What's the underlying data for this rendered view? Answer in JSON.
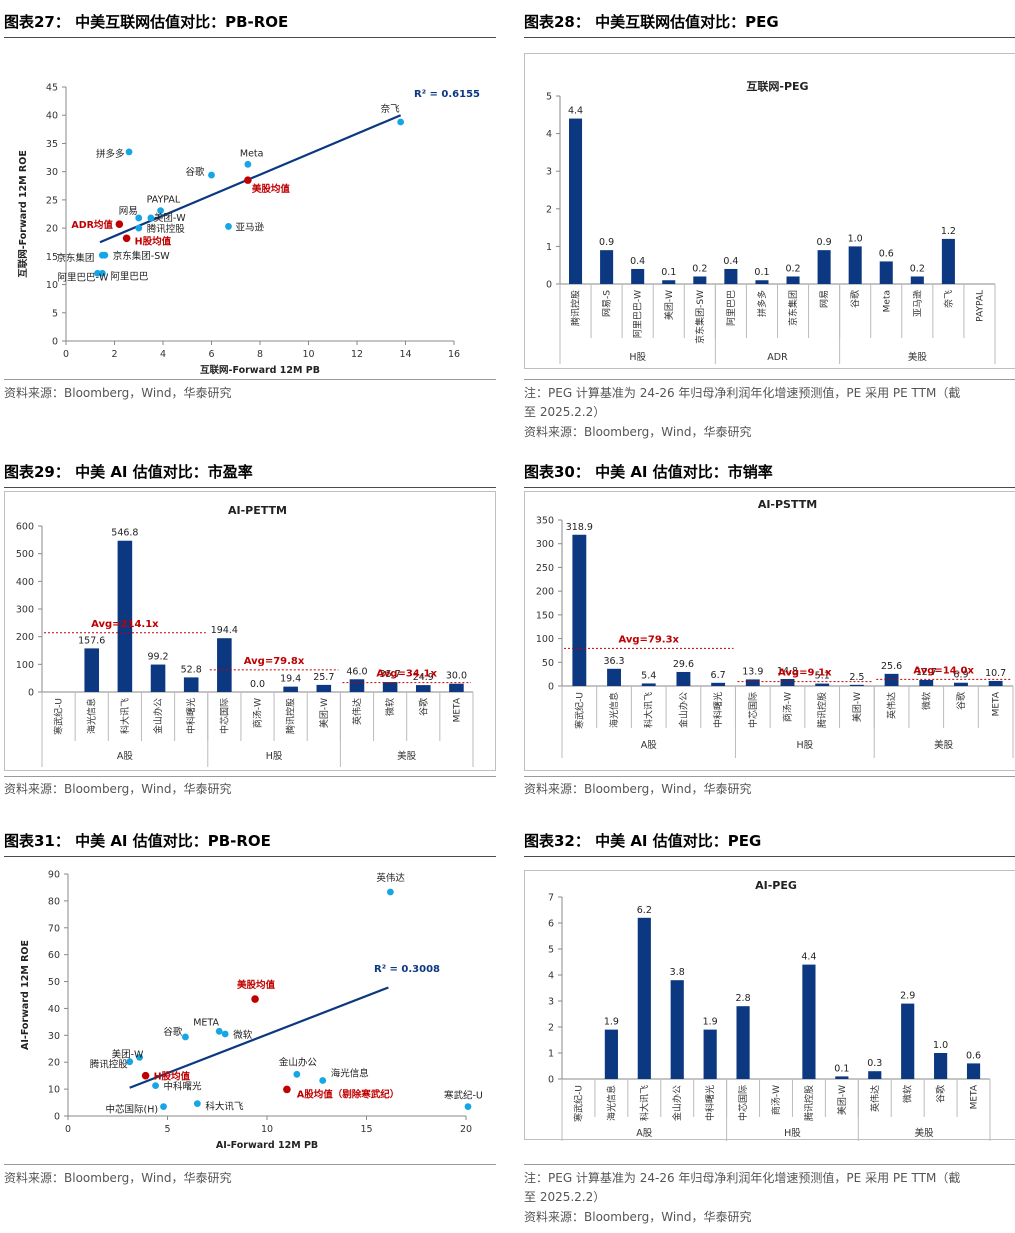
{
  "colors": {
    "bar": "#0b3880",
    "point": "#16a6e6",
    "highlight": "#c00000",
    "line": "#0b3880",
    "axis": "#888888"
  },
  "panels": [
    {
      "title": "图表27： 中美互联网估值对比：PB-ROE",
      "notes": [
        "资料来源：Bloomberg，Wind，华泰研究"
      ],
      "chart_data": {
        "type": "scatter",
        "xlabel": "互联网-Forward 12M PB",
        "ylabel": "互联网-Forward 12M ROE",
        "xlim": [
          0,
          16
        ],
        "ylim": [
          0,
          45
        ],
        "xstep": 2,
        "ystep": 5,
        "r2": "R² = 0.6155",
        "trend": [
          [
            1.4,
            17.5
          ],
          [
            13.8,
            40.0
          ]
        ],
        "points": [
          {
            "name": "奈飞",
            "x": 13.8,
            "y": 38.8,
            "group": "us"
          },
          {
            "name": "Meta",
            "x": 7.5,
            "y": 31.3,
            "group": "us"
          },
          {
            "name": "美股均值",
            "x": 7.5,
            "y": 28.5,
            "group": "avg"
          },
          {
            "name": "拼多多",
            "x": 2.6,
            "y": 33.5,
            "group": "cn"
          },
          {
            "name": "谷歌",
            "x": 6.0,
            "y": 29.4,
            "group": "us"
          },
          {
            "name": "PAYPAL",
            "x": 3.9,
            "y": 23.1,
            "group": "us"
          },
          {
            "name": "网易",
            "x": 3.0,
            "y": 21.8,
            "group": "cn"
          },
          {
            "name": "美团-W",
            "x": 3.5,
            "y": 21.8,
            "group": "cn"
          },
          {
            "name": "ADR均值",
            "x": 2.2,
            "y": 20.7,
            "group": "avg"
          },
          {
            "name": "腾讯控股",
            "x": 3.0,
            "y": 20.0,
            "group": "cn"
          },
          {
            "name": "亚马逊",
            "x": 6.7,
            "y": 20.3,
            "group": "us"
          },
          {
            "name": "H股均值",
            "x": 2.5,
            "y": 18.2,
            "group": "avg"
          },
          {
            "name": "京东集团",
            "x": 1.5,
            "y": 15.2,
            "group": "cn"
          },
          {
            "name": "京东集团-SW",
            "x": 1.6,
            "y": 15.2,
            "group": "cn"
          },
          {
            "name": "阿里巴巴",
            "x": 1.5,
            "y": 12.0,
            "group": "cn"
          },
          {
            "name": "阿里巴巴-W",
            "x": 1.3,
            "y": 12.0,
            "group": "cn"
          }
        ]
      }
    },
    {
      "title": "图表28： 中美互联网估值对比：PEG",
      "notes": [
        "注：PEG 计算基准为 24-26 年归母净利润年化增速预测值，PE 采用 PE TTM（截",
        "至 2025.2.2）",
        "资料来源：Bloomberg，Wind，华泰研究"
      ],
      "chart_data": {
        "type": "bar",
        "title": "互联网-PEG",
        "ylim": [
          0,
          5
        ],
        "ystep": 1,
        "categories": [
          "腾讯控股",
          "网易-S",
          "阿里巴巴-W",
          "美团-W",
          "京东集团-SW",
          "阿里巴巴",
          "拼多多",
          "京东集团",
          "网易",
          "谷歌",
          "Meta",
          "亚马逊",
          "奈飞",
          "PAYPAL"
        ],
        "values": [
          4.4,
          0.9,
          0.4,
          0.1,
          0.2,
          0.4,
          0.1,
          0.2,
          0.9,
          1.0,
          0.6,
          0.2,
          1.2,
          null
        ],
        "labels": [
          "4.4",
          "0.9",
          "0.4",
          "0.1",
          "0.2",
          "0.4",
          "0.1",
          "0.2",
          "0.9",
          "1.0",
          "0.6",
          "0.2",
          "1.2",
          ""
        ],
        "groups": [
          {
            "name": "H股",
            "count": 5
          },
          {
            "name": "ADR",
            "count": 4
          },
          {
            "name": "美股",
            "count": 5
          }
        ]
      }
    },
    {
      "title": "图表29： 中美 AI 估值对比：市盈率",
      "notes": [
        "资料来源：Bloomberg，Wind，华泰研究"
      ],
      "chart_data": {
        "type": "bar",
        "title": "AI-PETTM",
        "ylim": [
          0,
          600
        ],
        "ystep": 100,
        "categories": [
          "寒武纪-U",
          "海光信息",
          "科大讯飞",
          "金山办公",
          "中科曙光",
          "中芯国际",
          "商汤-W",
          "腾讯控股",
          "美团-W",
          "英伟达",
          "微软",
          "谷歌",
          "META"
        ],
        "values": [
          null,
          157.6,
          546.8,
          99.2,
          52.8,
          194.4,
          0.0,
          19.4,
          25.7,
          46.0,
          35.7,
          24.9,
          30.0
        ],
        "labels": [
          "",
          "157.6",
          "546.8",
          "99.2",
          "52.8",
          "194.4",
          "0.0",
          "19.4",
          "25.7",
          "46.0",
          "35.7",
          "24.9",
          "30.0"
        ],
        "groups": [
          {
            "name": "A股",
            "count": 5
          },
          {
            "name": "H股",
            "count": 4
          },
          {
            "name": "美股",
            "count": 4
          }
        ],
        "averages": [
          {
            "label": "Avg=214.1x",
            "value": 214.1,
            "from": 0,
            "to": 4
          },
          {
            "label": "Avg=79.8x",
            "value": 79.8,
            "from": 5,
            "to": 8
          },
          {
            "label": "Avg=34.1x",
            "value": 34.1,
            "from": 9,
            "to": 12
          }
        ]
      }
    },
    {
      "title": "图表30： 中美 AI 估值对比：市销率",
      "notes": [
        "资料来源：Bloomberg，Wind，华泰研究"
      ],
      "chart_data": {
        "type": "bar",
        "title": "AI-PSTTM",
        "ylim": [
          0,
          350
        ],
        "ystep": 50,
        "categories": [
          "寒武纪-U",
          "海光信息",
          "科大讯飞",
          "金山办公",
          "中科曙光",
          "中芯国际",
          "商汤-W",
          "腾讯控股",
          "美团-W",
          "英伟达",
          "微软",
          "谷歌",
          "META"
        ],
        "values": [
          318.9,
          36.3,
          5.4,
          29.6,
          6.7,
          13.9,
          14.8,
          5.1,
          2.5,
          25.6,
          12.7,
          6.9,
          10.7
        ],
        "labels": [
          "318.9",
          "36.3",
          "5.4",
          "29.6",
          "6.7",
          "13.9",
          "14.8",
          "5.1",
          "2.5",
          "25.6",
          "12.7",
          "6.9",
          "10.7"
        ],
        "groups": [
          {
            "name": "A股",
            "count": 5
          },
          {
            "name": "H股",
            "count": 4
          },
          {
            "name": "美股",
            "count": 4
          }
        ],
        "averages": [
          {
            "label": "Avg=79.3x",
            "value": 79.3,
            "from": 0,
            "to": 4
          },
          {
            "label": "Avg=9.1x",
            "value": 9.1,
            "from": 5,
            "to": 8
          },
          {
            "label": "Avg=14.0x",
            "value": 14.0,
            "from": 9,
            "to": 12
          }
        ]
      }
    },
    {
      "title": "图表31： 中美 AI 估值对比：PB-ROE",
      "notes": [
        "资料来源：Bloomberg，Wind，华泰研究"
      ],
      "chart_data": {
        "type": "scatter",
        "xlabel": "AI-Forward 12M PB",
        "ylabel": "AI-Forward 12M ROE",
        "xlim": [
          0,
          20
        ],
        "ylim": [
          0,
          90
        ],
        "xstep": 5,
        "ystep": 10,
        "r2": "R² = 0.3008",
        "trend": [
          [
            3.1,
            10.5
          ],
          [
            16.1,
            47.8
          ]
        ],
        "points": [
          {
            "name": "英伟达",
            "x": 16.2,
            "y": 83.3,
            "group": "us"
          },
          {
            "name": "美股均值",
            "x": 9.4,
            "y": 43.5,
            "group": "avg"
          },
          {
            "name": "META",
            "x": 7.6,
            "y": 31.5,
            "group": "us"
          },
          {
            "name": "谷歌",
            "x": 5.9,
            "y": 29.4,
            "group": "us"
          },
          {
            "name": "微软",
            "x": 7.9,
            "y": 30.5,
            "group": "us"
          },
          {
            "name": "美团-W",
            "x": 3.6,
            "y": 21.8,
            "group": "cn"
          },
          {
            "name": "腾讯控股",
            "x": 3.1,
            "y": 20.2,
            "group": "cn"
          },
          {
            "name": "H股均值",
            "x": 3.9,
            "y": 15.0,
            "group": "avg"
          },
          {
            "name": "中科曙光",
            "x": 4.4,
            "y": 11.3,
            "group": "cn"
          },
          {
            "name": "金山办公",
            "x": 11.5,
            "y": 15.5,
            "group": "cn"
          },
          {
            "name": "海光信息",
            "x": 12.8,
            "y": 13.2,
            "group": "cn"
          },
          {
            "name": "A股均值（剔除寒武纪）",
            "x": 11.0,
            "y": 9.9,
            "group": "avg"
          },
          {
            "name": "科大讯飞",
            "x": 6.5,
            "y": 4.6,
            "group": "cn"
          },
          {
            "name": "中芯国际(H)",
            "x": 4.8,
            "y": 3.5,
            "group": "cn"
          },
          {
            "name": "寒武纪-U",
            "x": 20.1,
            "y": 3.5,
            "group": "cn"
          }
        ]
      }
    },
    {
      "title": "图表32： 中美 AI 估值对比：PEG",
      "notes": [
        "注：PEG 计算基准为 24-26 年归母净利润年化增速预测值，PE 采用 PE TTM（截",
        "至 2025.2.2）",
        "资料来源：Bloomberg，Wind，华泰研究"
      ],
      "chart_data": {
        "type": "bar",
        "title": "AI-PEG",
        "ylim": [
          0,
          7
        ],
        "ystep": 1,
        "categories": [
          "寒武纪-U",
          "海光信息",
          "科大讯飞",
          "金山办公",
          "中科曙光",
          "中芯国际",
          "商汤-W",
          "腾讯控股",
          "美团-W",
          "英伟达",
          "微软",
          "谷歌",
          "META"
        ],
        "values": [
          null,
          1.9,
          6.2,
          3.8,
          1.9,
          2.8,
          null,
          4.4,
          0.1,
          0.3,
          2.9,
          1.0,
          0.6
        ],
        "labels": [
          "",
          "1.9",
          "6.2",
          "3.8",
          "1.9",
          "2.8",
          "",
          "4.4",
          "0.1",
          "0.3",
          "2.9",
          "1.0",
          "0.6"
        ],
        "groups": [
          {
            "name": "A股",
            "count": 5
          },
          {
            "name": "H股",
            "count": 4
          },
          {
            "name": "美股",
            "count": 4
          }
        ]
      }
    }
  ]
}
